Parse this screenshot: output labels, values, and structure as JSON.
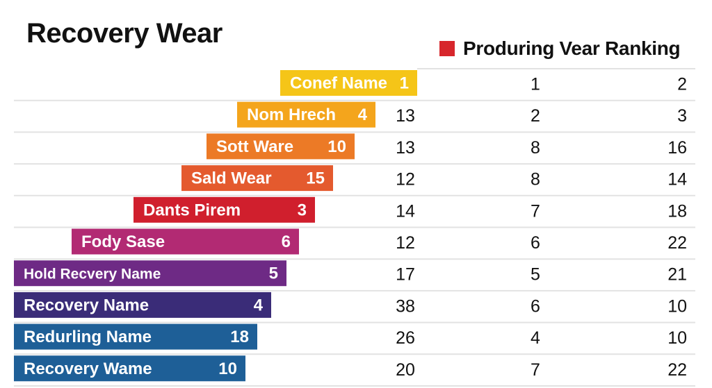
{
  "chart_data": {
    "type": "bar",
    "title": "Recovery Wear",
    "legend": {
      "label": "Produring Vear Ranking",
      "color": "#d7262c",
      "placement": "top-right"
    },
    "grid": true,
    "rows": [
      {
        "label": "Conef Name",
        "value": 1,
        "col1": "",
        "col2": "1",
        "col3": "2",
        "color": "#f5c518"
      },
      {
        "label": "Nom Hrech",
        "value": 4,
        "col1": "13",
        "col2": "2",
        "col3": "3",
        "color": "#f4a51c"
      },
      {
        "label": "Sott Ware",
        "value": 10,
        "col1": "13",
        "col2": "8",
        "col3": "16",
        "color": "#ec7a26"
      },
      {
        "label": "Sald Wear",
        "value": 15,
        "col1": "12",
        "col2": "8",
        "col3": "14",
        "color": "#e45a2e"
      },
      {
        "label": "Dants Pirem",
        "value": 3,
        "col1": "14",
        "col2": "7",
        "col3": "18",
        "color": "#d01f2d"
      },
      {
        "label": "Fody Sase",
        "value": 6,
        "col1": "12",
        "col2": "6",
        "col3": "22",
        "color": "#b22a73"
      },
      {
        "label": "Hold Recvery Name",
        "value": 5,
        "col1": "17",
        "col2": "5",
        "col3": "21",
        "color": "#6e2a85"
      },
      {
        "label": "Recovery Name",
        "value": 4,
        "col1": "38",
        "col2": "6",
        "col3": "10",
        "color": "#3a2c78"
      },
      {
        "label": "Redurling Name",
        "value": 18,
        "col1": "26",
        "col2": "4",
        "col3": "10",
        "color": "#1e5f97"
      },
      {
        "label": "Recovery Wame",
        "value": 10,
        "col1": "20",
        "col2": "7",
        "col3": "22",
        "color": "#1e5f97"
      }
    ]
  }
}
